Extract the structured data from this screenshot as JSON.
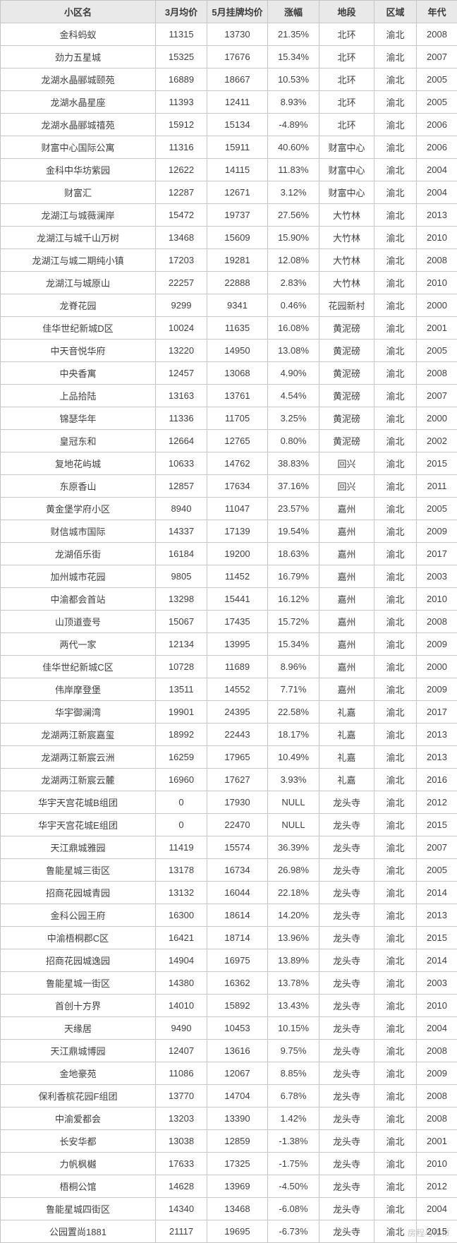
{
  "table": {
    "columns": [
      {
        "key": "name",
        "label": "小区名",
        "class": "col-name"
      },
      {
        "key": "mar",
        "label": "3月均价",
        "class": "col-mar"
      },
      {
        "key": "may",
        "label": "5月挂牌均价",
        "class": "col-may"
      },
      {
        "key": "rise",
        "label": "涨幅",
        "class": "col-rise"
      },
      {
        "key": "area",
        "label": "地段",
        "class": "col-area"
      },
      {
        "key": "dist",
        "label": "区域",
        "class": "col-dist"
      },
      {
        "key": "year",
        "label": "年代",
        "class": "col-year"
      }
    ],
    "rows": [
      {
        "name": "金科蚂蚁",
        "mar": "11315",
        "may": "13730",
        "rise": "21.35%",
        "area": "北环",
        "dist": "渝北",
        "year": "2008"
      },
      {
        "name": "劲力五星城",
        "mar": "15325",
        "may": "17676",
        "rise": "15.34%",
        "area": "北环",
        "dist": "渝北",
        "year": "2007"
      },
      {
        "name": "龙湖水晶郦城颐苑",
        "mar": "16889",
        "may": "18667",
        "rise": "10.53%",
        "area": "北环",
        "dist": "渝北",
        "year": "2005"
      },
      {
        "name": "龙湖水晶星座",
        "mar": "11393",
        "may": "12411",
        "rise": "8.93%",
        "area": "北环",
        "dist": "渝北",
        "year": "2005"
      },
      {
        "name": "龙湖水晶郦城禧苑",
        "mar": "15912",
        "may": "15134",
        "rise": "-4.89%",
        "area": "北环",
        "dist": "渝北",
        "year": "2006"
      },
      {
        "name": "财富中心国际公寓",
        "mar": "11316",
        "may": "15911",
        "rise": "40.60%",
        "area": "财富中心",
        "dist": "渝北",
        "year": "2006"
      },
      {
        "name": "金科中华坊紫园",
        "mar": "12622",
        "may": "14115",
        "rise": "11.83%",
        "area": "财富中心",
        "dist": "渝北",
        "year": "2004"
      },
      {
        "name": "财富汇",
        "mar": "12287",
        "may": "12671",
        "rise": "3.12%",
        "area": "财富中心",
        "dist": "渝北",
        "year": "2004"
      },
      {
        "name": "龙湖江与城薇澜岸",
        "mar": "15472",
        "may": "19737",
        "rise": "27.56%",
        "area": "大竹林",
        "dist": "渝北",
        "year": "2013"
      },
      {
        "name": "龙湖江与城千山万树",
        "mar": "13468",
        "may": "15609",
        "rise": "15.90%",
        "area": "大竹林",
        "dist": "渝北",
        "year": "2010"
      },
      {
        "name": "龙湖江与城二期纯小镇",
        "mar": "17203",
        "may": "19281",
        "rise": "12.08%",
        "area": "大竹林",
        "dist": "渝北",
        "year": "2008"
      },
      {
        "name": "龙湖江与城原山",
        "mar": "22257",
        "may": "22888",
        "rise": "2.83%",
        "area": "大竹林",
        "dist": "渝北",
        "year": "2010"
      },
      {
        "name": "龙脊花园",
        "mar": "9299",
        "may": "9341",
        "rise": "0.46%",
        "area": "花园新村",
        "dist": "渝北",
        "year": "2000"
      },
      {
        "name": "佳华世纪新城D区",
        "mar": "10024",
        "may": "11635",
        "rise": "16.08%",
        "area": "黄泥磅",
        "dist": "渝北",
        "year": "2001"
      },
      {
        "name": "中天音悦华府",
        "mar": "13220",
        "may": "14950",
        "rise": "13.08%",
        "area": "黄泥磅",
        "dist": "渝北",
        "year": "2005"
      },
      {
        "name": "中央香寓",
        "mar": "12457",
        "may": "13068",
        "rise": "4.90%",
        "area": "黄泥磅",
        "dist": "渝北",
        "year": "2008"
      },
      {
        "name": "上品拾陆",
        "mar": "13163",
        "may": "13761",
        "rise": "4.54%",
        "area": "黄泥磅",
        "dist": "渝北",
        "year": "2007"
      },
      {
        "name": "锦瑟华年",
        "mar": "11336",
        "may": "11705",
        "rise": "3.25%",
        "area": "黄泥磅",
        "dist": "渝北",
        "year": "2000"
      },
      {
        "name": "皇冠东和",
        "mar": "12664",
        "may": "12765",
        "rise": "0.80%",
        "area": "黄泥磅",
        "dist": "渝北",
        "year": "2002"
      },
      {
        "name": "复地花屿城",
        "mar": "10633",
        "may": "14762",
        "rise": "38.83%",
        "area": "回兴",
        "dist": "渝北",
        "year": "2015"
      },
      {
        "name": "东原香山",
        "mar": "12857",
        "may": "17634",
        "rise": "37.16%",
        "area": "回兴",
        "dist": "渝北",
        "year": "2011"
      },
      {
        "name": "黄金堡学府小区",
        "mar": "8940",
        "may": "11047",
        "rise": "23.57%",
        "area": "嘉州",
        "dist": "渝北",
        "year": "2005"
      },
      {
        "name": "财信城市国际",
        "mar": "14337",
        "may": "17139",
        "rise": "19.54%",
        "area": "嘉州",
        "dist": "渝北",
        "year": "2009"
      },
      {
        "name": "龙湖佰乐街",
        "mar": "16184",
        "may": "19200",
        "rise": "18.63%",
        "area": "嘉州",
        "dist": "渝北",
        "year": "2017"
      },
      {
        "name": "加州城市花园",
        "mar": "9805",
        "may": "11452",
        "rise": "16.79%",
        "area": "嘉州",
        "dist": "渝北",
        "year": "2003"
      },
      {
        "name": "中渝都会首站",
        "mar": "13298",
        "may": "15441",
        "rise": "16.12%",
        "area": "嘉州",
        "dist": "渝北",
        "year": "2010"
      },
      {
        "name": "山顶道壹号",
        "mar": "15067",
        "may": "17435",
        "rise": "15.72%",
        "area": "嘉州",
        "dist": "渝北",
        "year": "2008"
      },
      {
        "name": "两代一家",
        "mar": "12134",
        "may": "13995",
        "rise": "15.34%",
        "area": "嘉州",
        "dist": "渝北",
        "year": "2009"
      },
      {
        "name": "佳华世纪新城C区",
        "mar": "10728",
        "may": "11689",
        "rise": "8.96%",
        "area": "嘉州",
        "dist": "渝北",
        "year": "2000"
      },
      {
        "name": "伟岸摩登堡",
        "mar": "13511",
        "may": "14552",
        "rise": "7.71%",
        "area": "嘉州",
        "dist": "渝北",
        "year": "2009"
      },
      {
        "name": "华宇御澜湾",
        "mar": "19901",
        "may": "24395",
        "rise": "22.58%",
        "area": "礼嘉",
        "dist": "渝北",
        "year": "2017"
      },
      {
        "name": "龙湖两江新宸嘉玺",
        "mar": "18992",
        "may": "22443",
        "rise": "18.17%",
        "area": "礼嘉",
        "dist": "渝北",
        "year": "2013"
      },
      {
        "name": "龙湖两江新宸云洲",
        "mar": "16259",
        "may": "17965",
        "rise": "10.49%",
        "area": "礼嘉",
        "dist": "渝北",
        "year": "2013"
      },
      {
        "name": "龙湖两江新宸云麓",
        "mar": "16960",
        "may": "17627",
        "rise": "3.93%",
        "area": "礼嘉",
        "dist": "渝北",
        "year": "2016"
      },
      {
        "name": "华宇天宫花城B组团",
        "mar": "0",
        "may": "17930",
        "rise": "NULL",
        "area": "龙头寺",
        "dist": "渝北",
        "year": "2012"
      },
      {
        "name": "华宇天宫花城E组团",
        "mar": "0",
        "may": "22470",
        "rise": "NULL",
        "area": "龙头寺",
        "dist": "渝北",
        "year": "2015"
      },
      {
        "name": "天江鼎城雅园",
        "mar": "11419",
        "may": "15574",
        "rise": "36.39%",
        "area": "龙头寺",
        "dist": "渝北",
        "year": "2007"
      },
      {
        "name": "鲁能星城三街区",
        "mar": "13178",
        "may": "16734",
        "rise": "26.98%",
        "area": "龙头寺",
        "dist": "渝北",
        "year": "2005"
      },
      {
        "name": "招商花园城青园",
        "mar": "13132",
        "may": "16044",
        "rise": "22.18%",
        "area": "龙头寺",
        "dist": "渝北",
        "year": "2014"
      },
      {
        "name": "金科公园王府",
        "mar": "16300",
        "may": "18614",
        "rise": "14.20%",
        "area": "龙头寺",
        "dist": "渝北",
        "year": "2013"
      },
      {
        "name": "中渝梧桐郡C区",
        "mar": "16421",
        "may": "18714",
        "rise": "13.96%",
        "area": "龙头寺",
        "dist": "渝北",
        "year": "2015"
      },
      {
        "name": "招商花园城逸园",
        "mar": "14904",
        "may": "16975",
        "rise": "13.89%",
        "area": "龙头寺",
        "dist": "渝北",
        "year": "2014"
      },
      {
        "name": "鲁能星城一街区",
        "mar": "14380",
        "may": "16362",
        "rise": "13.78%",
        "area": "龙头寺",
        "dist": "渝北",
        "year": "2003"
      },
      {
        "name": "首创十方界",
        "mar": "14010",
        "may": "15892",
        "rise": "13.43%",
        "area": "龙头寺",
        "dist": "渝北",
        "year": "2010"
      },
      {
        "name": "天缘居",
        "mar": "9490",
        "may": "10453",
        "rise": "10.15%",
        "area": "龙头寺",
        "dist": "渝北",
        "year": "2004"
      },
      {
        "name": "天江鼎城博园",
        "mar": "12407",
        "may": "13616",
        "rise": "9.75%",
        "area": "龙头寺",
        "dist": "渝北",
        "year": "2008"
      },
      {
        "name": "金地豪苑",
        "mar": "11086",
        "may": "12067",
        "rise": "8.85%",
        "area": "龙头寺",
        "dist": "渝北",
        "year": "2009"
      },
      {
        "name": "保利香槟花园F组团",
        "mar": "13770",
        "may": "14704",
        "rise": "6.78%",
        "area": "龙头寺",
        "dist": "渝北",
        "year": "2008"
      },
      {
        "name": "中渝爱都会",
        "mar": "13203",
        "may": "13390",
        "rise": "1.42%",
        "area": "龙头寺",
        "dist": "渝北",
        "year": "2008"
      },
      {
        "name": "长安华都",
        "mar": "13038",
        "may": "12859",
        "rise": "-1.38%",
        "area": "龙头寺",
        "dist": "渝北",
        "year": "2001"
      },
      {
        "name": "力帆枫樾",
        "mar": "17633",
        "may": "17325",
        "rise": "-1.75%",
        "area": "龙头寺",
        "dist": "渝北",
        "year": "2010"
      },
      {
        "name": "梧桐公馆",
        "mar": "14628",
        "may": "13969",
        "rise": "-4.50%",
        "area": "龙头寺",
        "dist": "渝北",
        "year": "2012"
      },
      {
        "name": "鲁能星城四街区",
        "mar": "14340",
        "may": "13468",
        "rise": "-6.08%",
        "area": "龙头寺",
        "dist": "渝北",
        "year": "2004"
      },
      {
        "name": "公园置尚1881",
        "mar": "21117",
        "may": "19695",
        "rise": "-6.73%",
        "area": "龙头寺",
        "dist": "渝北",
        "year": "2015"
      }
    ]
  },
  "watermark": "房程与楼市"
}
